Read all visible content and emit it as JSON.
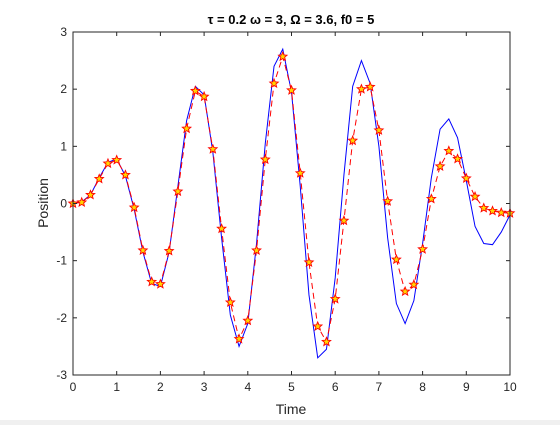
{
  "chart_data": {
    "type": "line",
    "title": "τ = 0.2  ω = 3,  Ω = 3.6,  f0 = 5",
    "xlabel": "Time",
    "ylabel": "Position",
    "xlim": [
      0,
      10
    ],
    "ylim": [
      -3,
      3
    ],
    "xticks": [
      0,
      1,
      2,
      3,
      4,
      5,
      6,
      7,
      8,
      9,
      10
    ],
    "yticks": [
      -3,
      -2,
      -1,
      0,
      1,
      2,
      3
    ],
    "grid": false,
    "box": true,
    "colors": {
      "solid": "#0000ff",
      "dashed": "#ff0000",
      "marker_fill": "#ffd700",
      "axes": "#262626"
    },
    "series": [
      {
        "style": "solid-line",
        "x": [
          0,
          0.2,
          0.4,
          0.6,
          0.8,
          1.0,
          1.2,
          1.4,
          1.6,
          1.8,
          2.0,
          2.2,
          2.4,
          2.6,
          2.8,
          3.0,
          3.2,
          3.4,
          3.6,
          3.8,
          4.0,
          4.2,
          4.4,
          4.6,
          4.8,
          5.0,
          5.2,
          5.4,
          5.6,
          5.8,
          6.0,
          6.2,
          6.4,
          6.6,
          6.8,
          7.0,
          7.2,
          7.4,
          7.6,
          7.8,
          8.0,
          8.2,
          8.4,
          8.6,
          8.8,
          9.0,
          9.2,
          9.4,
          9.6,
          9.8,
          10.0
        ],
        "y": [
          0,
          0.03,
          0.15,
          0.45,
          0.72,
          0.78,
          0.48,
          -0.1,
          -0.85,
          -1.4,
          -1.45,
          -0.85,
          0.3,
          1.45,
          2.05,
          1.9,
          0.9,
          -0.6,
          -1.95,
          -2.5,
          -2.1,
          -0.7,
          1.05,
          2.4,
          2.7,
          1.95,
          0.3,
          -1.6,
          -2.7,
          -2.55,
          -1.3,
          0.5,
          2.05,
          2.5,
          2.1,
          1.0,
          -0.6,
          -1.75,
          -2.1,
          -1.7,
          -0.7,
          0.45,
          1.3,
          1.48,
          1.15,
          0.4,
          -0.4,
          -0.7,
          -0.72,
          -0.5,
          -0.2
        ]
      },
      {
        "style": "dashed-line-star-markers",
        "x": [
          0,
          0.2,
          0.4,
          0.6,
          0.8,
          1.0,
          1.2,
          1.4,
          1.6,
          1.8,
          2.0,
          2.2,
          2.4,
          2.6,
          2.8,
          3.0,
          3.2,
          3.4,
          3.6,
          3.8,
          4.0,
          4.2,
          4.4,
          4.6,
          4.8,
          5.0,
          5.2,
          5.4,
          5.6,
          5.8,
          6.0,
          6.2,
          6.4,
          6.6,
          6.8,
          7.0,
          7.2,
          7.4,
          7.6,
          7.8,
          8.0,
          8.2,
          8.4,
          8.6,
          8.8,
          9.0,
          9.2,
          9.4,
          9.6,
          9.8,
          10.0
        ],
        "y": [
          0.0,
          0.02,
          0.15,
          0.43,
          0.7,
          0.76,
          0.5,
          -0.07,
          -0.82,
          -1.37,
          -1.41,
          -0.83,
          0.21,
          1.31,
          1.97,
          1.87,
          0.95,
          -0.44,
          -1.73,
          -2.37,
          -2.05,
          -0.82,
          0.77,
          2.1,
          2.57,
          1.98,
          0.53,
          -1.03,
          -2.15,
          -2.42,
          -1.67,
          -0.3,
          1.1,
          2.0,
          2.04,
          1.28,
          0.04,
          -0.98,
          -1.54,
          -1.42,
          -0.8,
          0.08,
          0.65,
          0.92,
          0.78,
          0.44,
          0.12,
          -0.08,
          -0.13,
          -0.16,
          -0.17
        ]
      }
    ]
  }
}
